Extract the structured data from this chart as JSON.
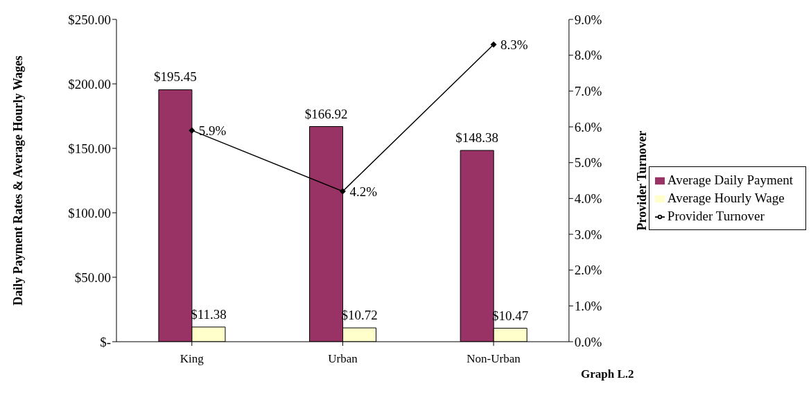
{
  "chart_data": {
    "type": "bar",
    "categories": [
      "King",
      "Urban",
      "Non-Urban"
    ],
    "series": [
      {
        "name": "Average Daily Payment",
        "color": "#993366",
        "values": [
          195.45,
          166.92,
          148.38
        ],
        "value_labels": [
          "$195.45",
          "$166.92",
          "$148.38"
        ]
      },
      {
        "name": "Average Hourly Wage",
        "color": "#ffffcc",
        "values": [
          11.38,
          10.72,
          10.47
        ],
        "value_labels": [
          "$11.38",
          "$10.72",
          "$10.47"
        ]
      },
      {
        "name": "Provider Turnover",
        "type": "line",
        "axis": "y2",
        "color": "#000000",
        "values": [
          5.9,
          4.2,
          8.3
        ],
        "value_labels": [
          "5.9%",
          "4.2%",
          "8.3%"
        ]
      }
    ],
    "ylabel": "Daily Payment Rates & Average Hourly Wages",
    "y2label": "Provider Turnover",
    "ylim": [
      0,
      250
    ],
    "yticks": [
      {
        "value": 0,
        "label": "$-"
      },
      {
        "value": 50,
        "label": "$50.00"
      },
      {
        "value": 100,
        "label": "$100.00"
      },
      {
        "value": 150,
        "label": "$150.00"
      },
      {
        "value": 200,
        "label": "$200.00"
      },
      {
        "value": 250,
        "label": "$250.00"
      }
    ],
    "y2lim": [
      0,
      9
    ],
    "y2ticks": [
      {
        "value": 0,
        "label": "0.0%"
      },
      {
        "value": 1,
        "label": "1.0%"
      },
      {
        "value": 2,
        "label": "2.0%"
      },
      {
        "value": 3,
        "label": "3.0%"
      },
      {
        "value": 4,
        "label": "4.0%"
      },
      {
        "value": 5,
        "label": "5.0%"
      },
      {
        "value": 6,
        "label": "6.0%"
      },
      {
        "value": 7,
        "label": "7.0%"
      },
      {
        "value": 8,
        "label": "8.0%"
      },
      {
        "value": 9,
        "label": "9.0%"
      }
    ],
    "annotations": [
      "Graph L.2"
    ],
    "grid": false,
    "legend": "right",
    "marker": "diamond",
    "line_style": "solid"
  }
}
